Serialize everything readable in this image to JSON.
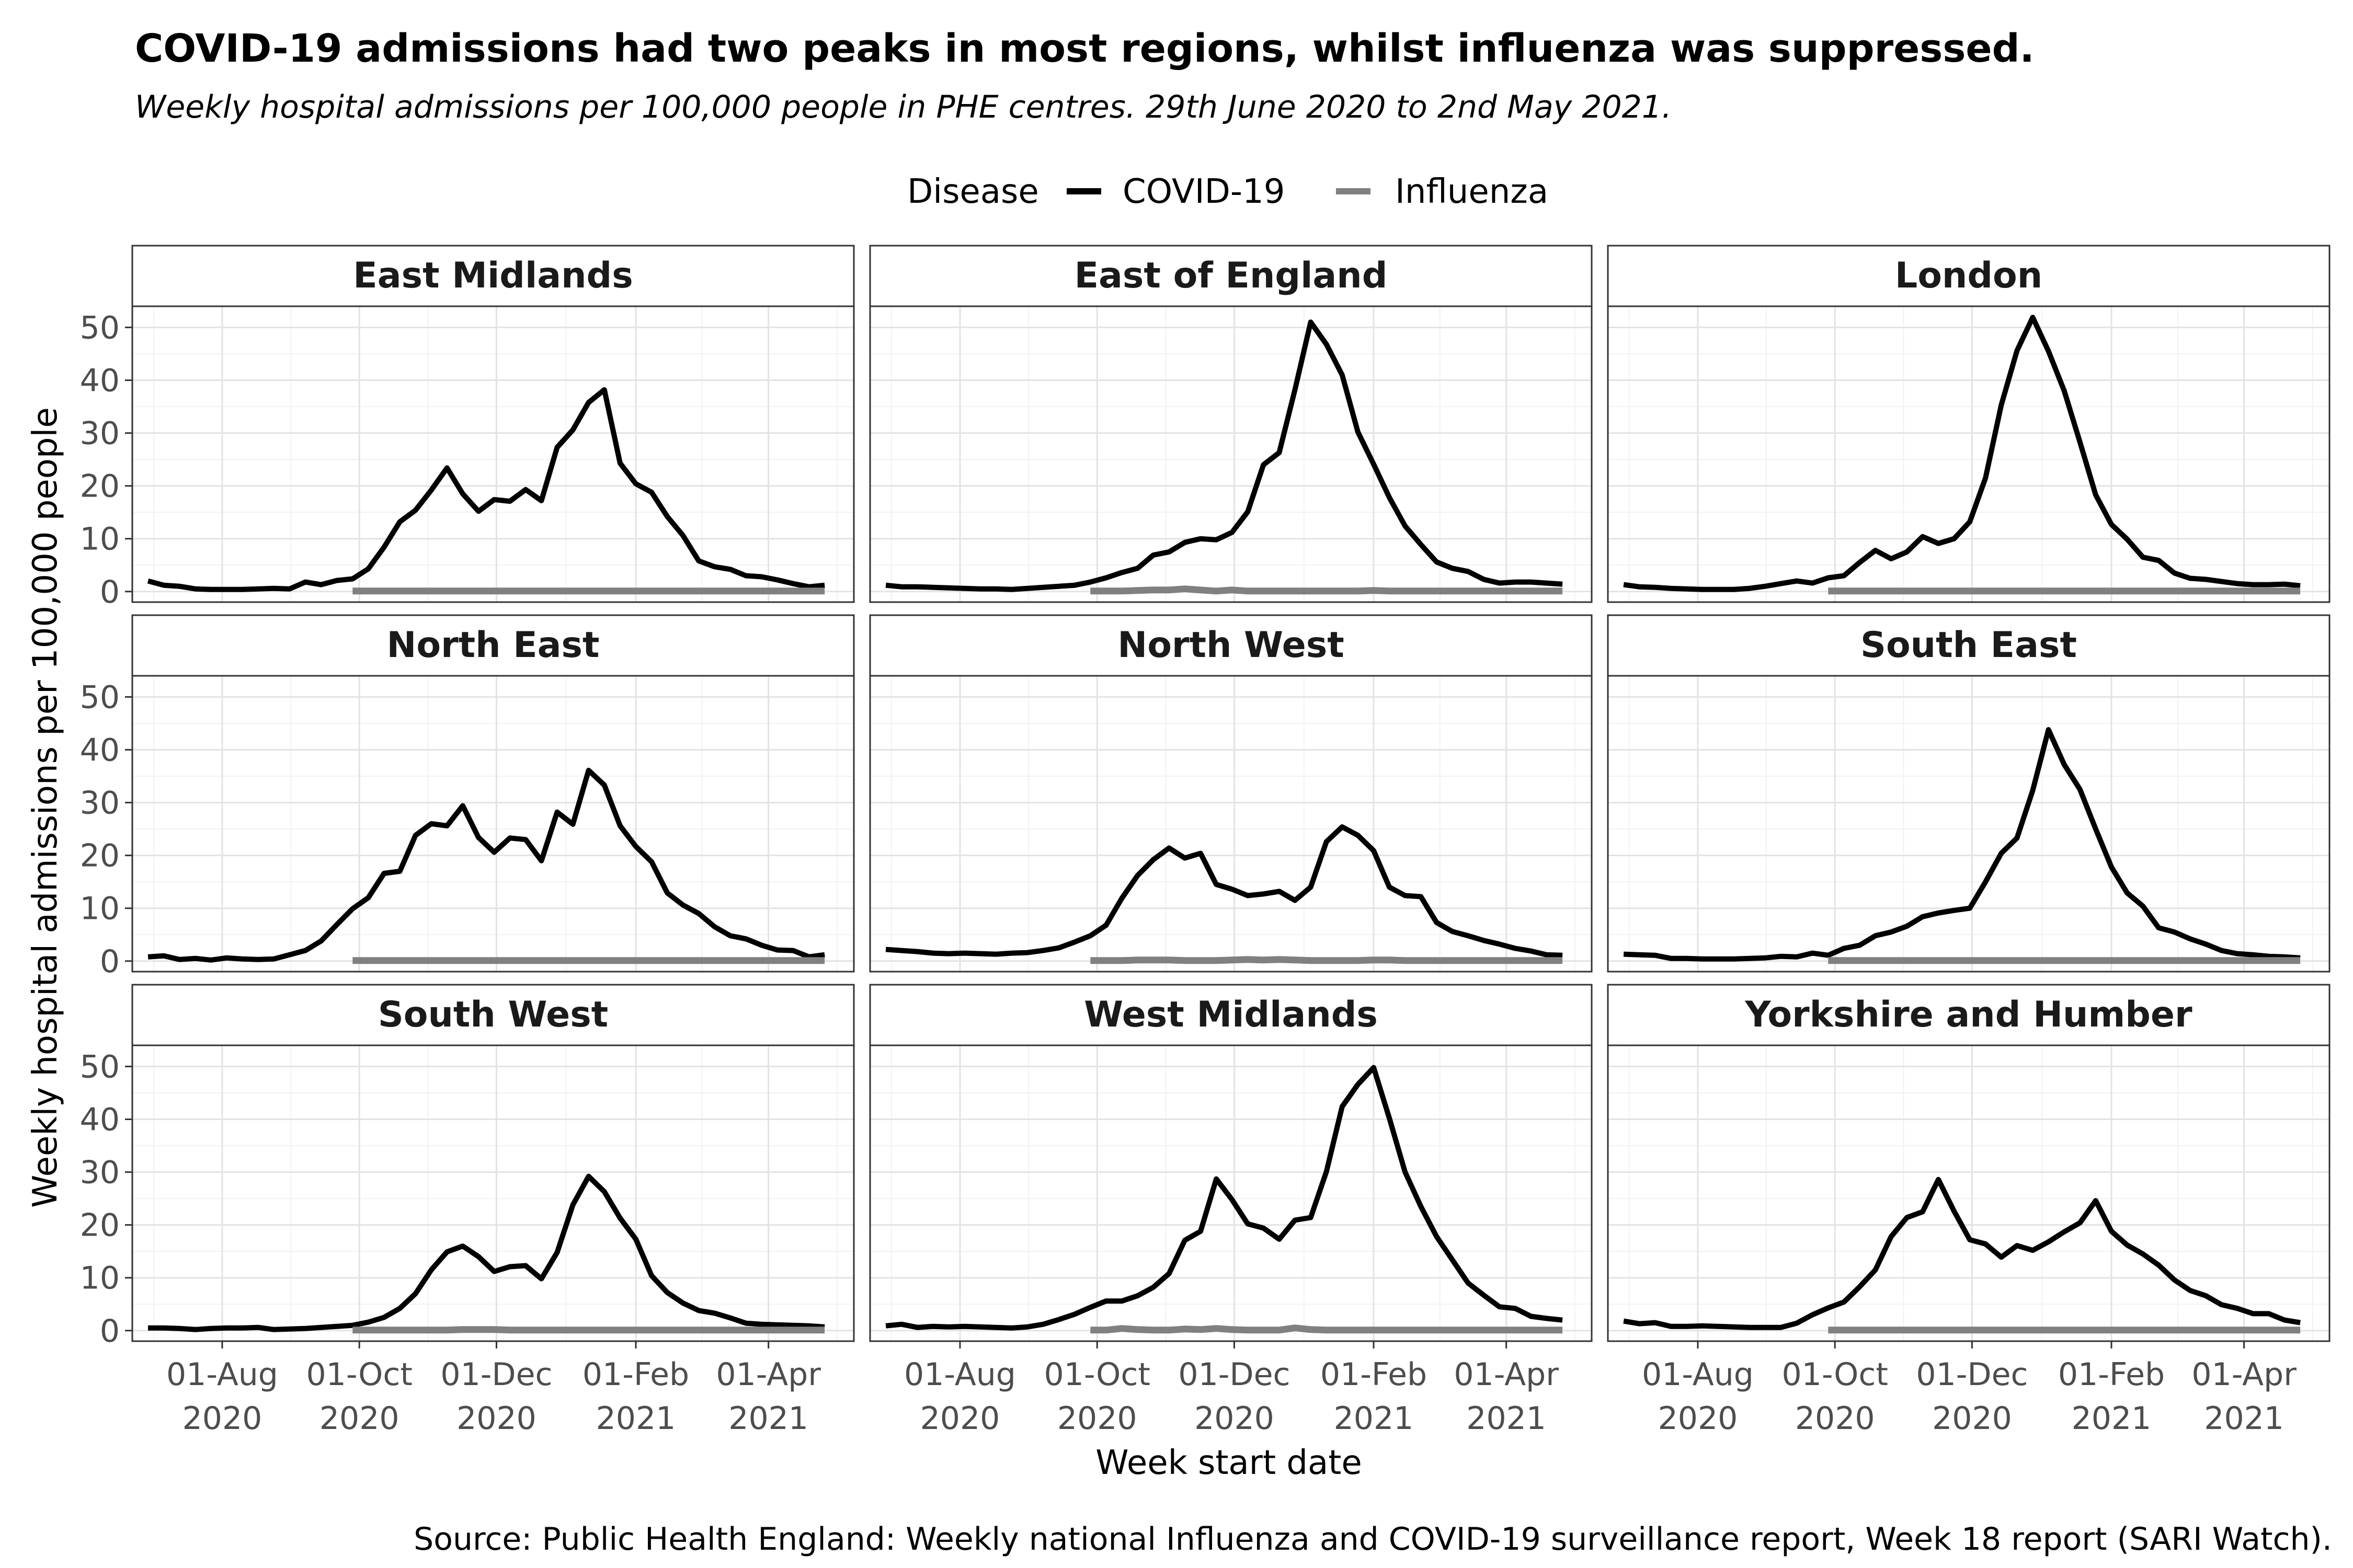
{
  "title": "COVID-19 admissions had two peaks in most regions, whilst influenza was suppressed.",
  "subtitle": "Weekly hospital admissions per 100,000 people in PHE centres. 29th June 2020 to 2nd May 2021.",
  "legend": {
    "title": "Disease",
    "items": [
      {
        "label": "COVID-19",
        "color": "#000000"
      },
      {
        "label": "Influenza",
        "color": "#808080"
      }
    ]
  },
  "xlabel": "Week start date",
  "ylabel": "Weekly hospital admissions per 100,000 people",
  "caption": "Source: Public Health England: Weekly national Influenza and COVID-19 surveillance report, Week 18 report (SARI Watch).",
  "chart_data": {
    "type": "line",
    "facet": "region",
    "x_unit": "week start date",
    "x_start": "2020-06-29",
    "x_step_days": 7,
    "x_end": "2021-05-02",
    "flu_start": "2020-09-28",
    "xlim": [
      "2020-06-22",
      "2021-05-09"
    ],
    "ylim": [
      -2,
      54
    ],
    "y_ticks": [
      0,
      10,
      20,
      30,
      40,
      50
    ],
    "x_ticks": [
      {
        "date": "2020-08-01",
        "line1": "01-Aug",
        "line2": "2020"
      },
      {
        "date": "2020-10-01",
        "line1": "01-Oct",
        "line2": "2020"
      },
      {
        "date": "2020-12-01",
        "line1": "01-Dec",
        "line2": "2020"
      },
      {
        "date": "2021-02-01",
        "line1": "01-Feb",
        "line2": "2021"
      },
      {
        "date": "2021-04-01",
        "line1": "01-Apr",
        "line2": "2021"
      }
    ],
    "panels": [
      {
        "region": "East Midlands",
        "series": [
          {
            "name": "COVID-19",
            "values": [
              2.0,
              1.2,
              1.0,
              0.5,
              0.4,
              0.4,
              0.4,
              0.5,
              0.6,
              0.5,
              1.8,
              1.3,
              2.1,
              2.4,
              4.3,
              8.4,
              13.2,
              15.4,
              19.2,
              23.4,
              18.5,
              15.2,
              17.4,
              17.1,
              19.3,
              17.2,
              27.3,
              30.6,
              35.8,
              38.2,
              24.3,
              20.4,
              18.8,
              14.2,
              10.6,
              5.8,
              4.7,
              4.2,
              3.0,
              2.8,
              2.2,
              1.5,
              0.9,
              1.2
            ]
          },
          {
            "name": "Influenza",
            "values": [
              0.1,
              0.1,
              0.1,
              0.1,
              0.1,
              0.1,
              0.1,
              0.1,
              0.1,
              0.1,
              0.1,
              0.1,
              0.1,
              0.1,
              0.1,
              0.1,
              0.1,
              0.1,
              0.1,
              0.1,
              0.1,
              0.1,
              0.1,
              0.1,
              0.1,
              0.1,
              0.1,
              0.1,
              0.1,
              0.1,
              0.1
            ]
          }
        ]
      },
      {
        "region": "East of England",
        "series": [
          {
            "name": "COVID-19",
            "values": [
              1.2,
              0.9,
              0.9,
              0.8,
              0.7,
              0.6,
              0.5,
              0.5,
              0.4,
              0.6,
              0.8,
              1.0,
              1.2,
              1.8,
              2.6,
              3.6,
              4.4,
              6.9,
              7.5,
              9.3,
              10.0,
              9.8,
              11.2,
              15.1,
              24.0,
              26.3,
              38.2,
              51.0,
              46.8,
              41.0,
              30.2,
              24.1,
              17.8,
              12.4,
              8.9,
              5.6,
              4.4,
              3.8,
              2.3,
              1.6,
              1.8,
              1.8,
              1.6,
              1.4
            ]
          },
          {
            "name": "Influenza",
            "values": [
              0.1,
              0.1,
              0.1,
              0.2,
              0.3,
              0.3,
              0.5,
              0.3,
              0.1,
              0.3,
              0.1,
              0.1,
              0.1,
              0.1,
              0.1,
              0.1,
              0.1,
              0.1,
              0.2,
              0.1,
              0.1,
              0.1,
              0.1,
              0.1,
              0.1,
              0.1,
              0.1,
              0.1,
              0.1,
              0.1,
              0.1
            ]
          }
        ]
      },
      {
        "region": "London",
        "series": [
          {
            "name": "COVID-19",
            "values": [
              1.3,
              0.9,
              0.8,
              0.6,
              0.5,
              0.4,
              0.4,
              0.4,
              0.6,
              1.0,
              1.5,
              2.0,
              1.6,
              2.6,
              3.0,
              5.5,
              7.8,
              6.2,
              7.5,
              10.4,
              9.1,
              10.0,
              13.2,
              21.5,
              35.3,
              45.6,
              51.9,
              45.5,
              38.0,
              28.3,
              18.3,
              12.7,
              9.9,
              6.5,
              5.9,
              3.5,
              2.5,
              2.3,
              1.9,
              1.5,
              1.3,
              1.3,
              1.4,
              1.1
            ]
          },
          {
            "name": "Influenza",
            "values": [
              0.1,
              0.1,
              0.1,
              0.1,
              0.1,
              0.1,
              0.1,
              0.1,
              0.1,
              0.1,
              0.1,
              0.1,
              0.1,
              0.1,
              0.1,
              0.1,
              0.1,
              0.1,
              0.1,
              0.1,
              0.1,
              0.1,
              0.1,
              0.1,
              0.1,
              0.1,
              0.1,
              0.1,
              0.1,
              0.1,
              0.1
            ]
          }
        ]
      },
      {
        "region": "North East",
        "series": [
          {
            "name": "COVID-19",
            "values": [
              0.8,
              1.0,
              0.3,
              0.5,
              0.2,
              0.6,
              0.4,
              0.3,
              0.4,
              1.2,
              2.0,
              3.8,
              6.9,
              9.9,
              12.0,
              16.6,
              17.0,
              23.8,
              26.0,
              25.6,
              29.4,
              23.4,
              20.6,
              23.3,
              23.0,
              19.0,
              28.2,
              25.9,
              36.1,
              33.3,
              25.6,
              21.7,
              18.8,
              12.9,
              10.6,
              9.0,
              6.5,
              4.8,
              4.2,
              3.0,
              2.1,
              2.0,
              0.8,
              1.2
            ]
          },
          {
            "name": "Influenza",
            "values": [
              0.1,
              0.1,
              0.1,
              0.1,
              0.1,
              0.1,
              0.1,
              0.1,
              0.1,
              0.1,
              0.1,
              0.1,
              0.1,
              0.1,
              0.1,
              0.1,
              0.1,
              0.1,
              0.1,
              0.1,
              0.1,
              0.1,
              0.1,
              0.1,
              0.1,
              0.1,
              0.1,
              0.1,
              0.1,
              0.1,
              0.1
            ]
          }
        ]
      },
      {
        "region": "North West",
        "series": [
          {
            "name": "COVID-19",
            "values": [
              2.2,
              2.0,
              1.8,
              1.5,
              1.4,
              1.5,
              1.4,
              1.3,
              1.5,
              1.6,
              2.0,
              2.5,
              3.6,
              4.8,
              6.8,
              11.9,
              16.2,
              19.2,
              21.4,
              19.5,
              20.4,
              14.5,
              13.6,
              12.4,
              12.7,
              13.2,
              11.5,
              14.0,
              22.6,
              25.4,
              23.8,
              20.9,
              14.0,
              12.4,
              12.2,
              7.3,
              5.6,
              4.8,
              3.9,
              3.2,
              2.4,
              1.9,
              1.2,
              1.1
            ]
          },
          {
            "name": "Influenza",
            "values": [
              0.1,
              0.1,
              0.1,
              0.2,
              0.2,
              0.2,
              0.1,
              0.1,
              0.1,
              0.2,
              0.3,
              0.2,
              0.3,
              0.2,
              0.1,
              0.1,
              0.1,
              0.1,
              0.2,
              0.2,
              0.1,
              0.1,
              0.1,
              0.1,
              0.1,
              0.1,
              0.1,
              0.1,
              0.1,
              0.1,
              0.1
            ]
          }
        ]
      },
      {
        "region": "South East",
        "series": [
          {
            "name": "COVID-19",
            "values": [
              1.3,
              1.2,
              1.1,
              0.5,
              0.5,
              0.4,
              0.4,
              0.4,
              0.5,
              0.6,
              0.9,
              0.8,
              1.5,
              1.1,
              2.4,
              3.0,
              4.8,
              5.5,
              6.6,
              8.4,
              9.1,
              9.6,
              10.0,
              15.0,
              20.4,
              23.3,
              32.3,
              43.8,
              37.2,
              32.5,
              25.0,
              17.8,
              12.9,
              10.4,
              6.3,
              5.5,
              4.2,
              3.2,
              2.0,
              1.4,
              1.2,
              0.9,
              0.8,
              0.6
            ]
          },
          {
            "name": "Influenza",
            "values": [
              0.1,
              0.1,
              0.1,
              0.1,
              0.1,
              0.1,
              0.1,
              0.1,
              0.1,
              0.1,
              0.1,
              0.1,
              0.1,
              0.1,
              0.1,
              0.1,
              0.1,
              0.1,
              0.1,
              0.1,
              0.1,
              0.1,
              0.1,
              0.1,
              0.1,
              0.1,
              0.1,
              0.1,
              0.1,
              0.1,
              0.1
            ]
          }
        ]
      },
      {
        "region": "South West",
        "series": [
          {
            "name": "COVID-19",
            "values": [
              0.5,
              0.5,
              0.4,
              0.2,
              0.4,
              0.5,
              0.5,
              0.6,
              0.2,
              0.3,
              0.4,
              0.6,
              0.8,
              1.0,
              1.6,
              2.5,
              4.2,
              7.0,
              11.5,
              14.9,
              16.0,
              14.0,
              11.2,
              12.1,
              12.3,
              9.8,
              14.8,
              23.8,
              29.2,
              26.3,
              21.3,
              17.3,
              10.4,
              7.2,
              5.2,
              3.8,
              3.3,
              2.4,
              1.4,
              1.2,
              1.1,
              1.0,
              0.9,
              0.7
            ]
          },
          {
            "name": "Influenza",
            "values": [
              0.1,
              0.1,
              0.1,
              0.1,
              0.1,
              0.1,
              0.1,
              0.2,
              0.2,
              0.2,
              0.1,
              0.1,
              0.1,
              0.1,
              0.1,
              0.1,
              0.1,
              0.1,
              0.1,
              0.1,
              0.1,
              0.1,
              0.1,
              0.1,
              0.1,
              0.1,
              0.1,
              0.1,
              0.1,
              0.1,
              0.1
            ]
          }
        ]
      },
      {
        "region": "West Midlands",
        "series": [
          {
            "name": "COVID-19",
            "values": [
              0.9,
              1.2,
              0.6,
              0.8,
              0.7,
              0.8,
              0.7,
              0.6,
              0.5,
              0.7,
              1.2,
              2.1,
              3.1,
              4.4,
              5.6,
              5.6,
              6.6,
              8.2,
              10.8,
              17.1,
              18.8,
              28.7,
              24.8,
              20.2,
              19.4,
              17.3,
              20.9,
              21.4,
              30.1,
              42.4,
              46.6,
              49.8,
              40.2,
              30.0,
              23.5,
              17.8,
              13.4,
              9.0,
              6.7,
              4.5,
              4.2,
              2.7,
              2.3,
              2.0
            ]
          },
          {
            "name": "Influenza",
            "values": [
              0.1,
              0.1,
              0.4,
              0.2,
              0.1,
              0.1,
              0.3,
              0.2,
              0.4,
              0.2,
              0.1,
              0.1,
              0.1,
              0.5,
              0.2,
              0.1,
              0.1,
              0.1,
              0.1,
              0.1,
              0.1,
              0.1,
              0.1,
              0.1,
              0.1,
              0.1,
              0.1,
              0.1,
              0.1,
              0.1,
              0.1
            ]
          }
        ]
      },
      {
        "region": "Yorkshire and Humber",
        "series": [
          {
            "name": "COVID-19",
            "values": [
              1.8,
              1.3,
              1.5,
              0.8,
              0.8,
              0.9,
              0.8,
              0.7,
              0.6,
              0.6,
              0.6,
              1.4,
              3.0,
              4.3,
              5.4,
              8.3,
              11.5,
              17.8,
              21.4,
              22.5,
              28.6,
              22.6,
              17.2,
              16.4,
              13.9,
              16.1,
              15.2,
              16.8,
              18.7,
              20.4,
              24.6,
              18.8,
              16.2,
              14.5,
              12.4,
              9.6,
              7.6,
              6.6,
              4.9,
              4.2,
              3.2,
              3.2,
              2.0,
              1.5
            ]
          },
          {
            "name": "Influenza",
            "values": [
              0.1,
              0.1,
              0.1,
              0.1,
              0.1,
              0.1,
              0.1,
              0.1,
              0.1,
              0.1,
              0.1,
              0.1,
              0.1,
              0.1,
              0.1,
              0.1,
              0.1,
              0.1,
              0.1,
              0.1,
              0.1,
              0.1,
              0.1,
              0.1,
              0.1,
              0.1,
              0.1,
              0.1,
              0.1,
              0.1,
              0.1
            ]
          }
        ]
      }
    ]
  }
}
